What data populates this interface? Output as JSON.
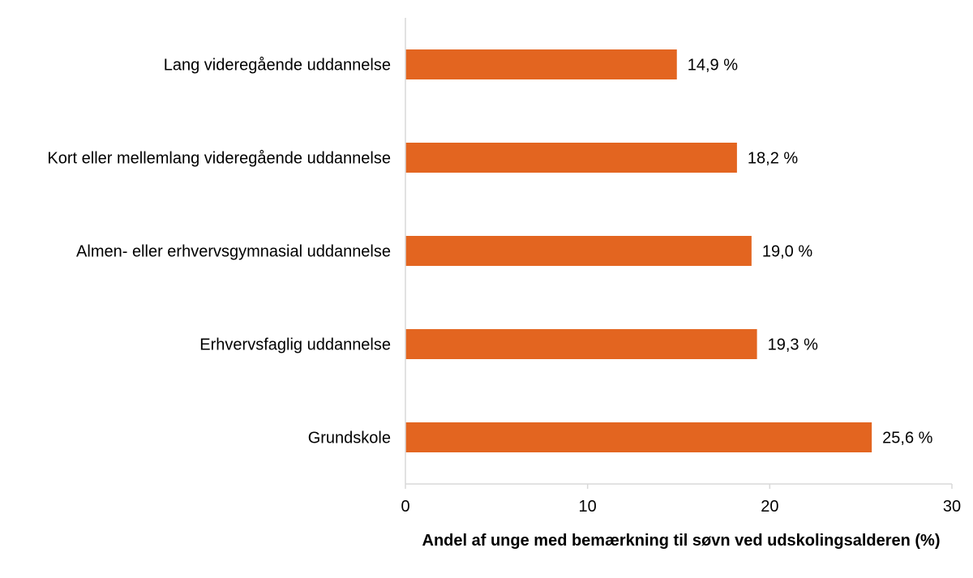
{
  "chart_data": {
    "type": "bar",
    "orientation": "horizontal",
    "categories": [
      "Lang videregående uddannelse",
      "Kort eller mellemlang videregående uddannelse",
      "Almen- eller erhvervsgymnasial uddannelse",
      "Erhvervsfaglig uddannelse",
      "Grundskole"
    ],
    "values": [
      14.9,
      18.2,
      19.0,
      19.3,
      25.6
    ],
    "value_labels": [
      "14,9 %",
      "18,2 %",
      "19,0 %",
      "19,3 %",
      "25,6 %"
    ],
    "xlabel": "Andel af unge med bemærkning til søvn ved udskolingsalderen (%)",
    "ylabel": "",
    "xlim": [
      0,
      30
    ],
    "x_ticks": [
      0,
      10,
      20,
      30
    ],
    "x_tick_labels": [
      "0",
      "10",
      "20",
      "30"
    ],
    "grid": false,
    "legend": "none",
    "bar_color": "#E36520",
    "axis_color": "#D9D9D9"
  }
}
